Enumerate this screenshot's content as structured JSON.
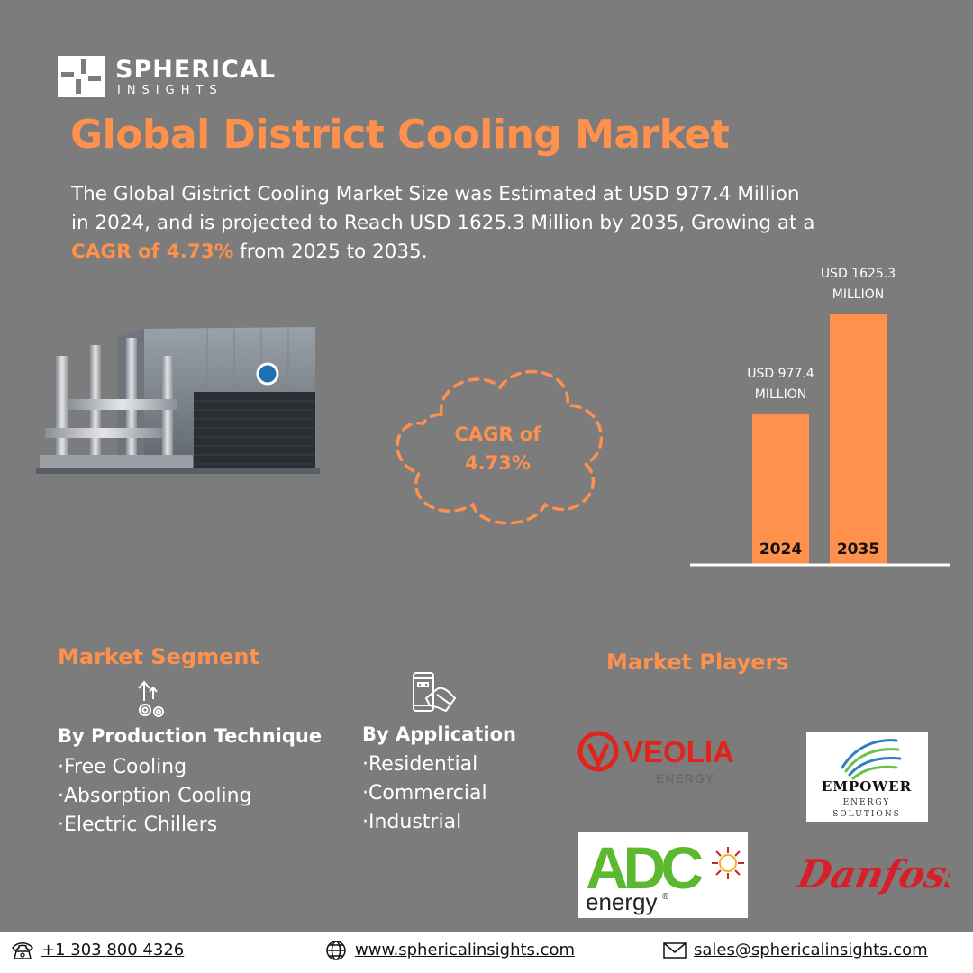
{
  "brand": {
    "name": "SPHERICAL",
    "tagline": "INSIGHTS"
  },
  "title": "Global District Cooling Market",
  "description": {
    "part1": "The Global Gistrict Cooling Market Size was Estimated at USD 977.4 Million in 2024, and is projected to Reach USD 1625.3 Million by 2035, Growing at a ",
    "highlight": "CAGR of 4.73%",
    "part2": " from 2025 to 2035."
  },
  "cagr_badge": {
    "line1": "CAGR of",
    "line2": "4.73%"
  },
  "chart_data": {
    "type": "bar",
    "categories": [
      "2024",
      "2035"
    ],
    "values": [
      977.4,
      1625.3
    ],
    "data_labels": [
      [
        "USD 977.4",
        "MILLION"
      ],
      [
        "USD 1625.3",
        "MILLION"
      ]
    ],
    "units": "USD Million",
    "ylim": [
      0,
      1625.3
    ],
    "grid": false,
    "bar_color": "#ff914d"
  },
  "segments": {
    "heading": "Market Segment",
    "production": {
      "title": "By Production Technique",
      "icon": "gear-arrow-icon",
      "items": [
        "Free Cooling",
        "Absorption Cooling",
        "Electric Chillers"
      ]
    },
    "application": {
      "title": "By Application",
      "icon": "phone-hand-icon",
      "items": [
        "Residential",
        "Commercial",
        "Industrial"
      ]
    }
  },
  "players": {
    "heading": "Market Players",
    "veolia": {
      "name": "VEOLIA",
      "sub": "ENERGY"
    },
    "empower": {
      "name": "EMPOWER",
      "sub1": "ENERGY",
      "sub2": "SOLUTIONS"
    },
    "adc": {
      "name": "ADC",
      "sub": "energy",
      "reg": "®"
    },
    "danfoss": {
      "name": "Danfoss"
    }
  },
  "footer": {
    "phone": "+1 303 800 4326",
    "website": "www.sphericalinsights.com",
    "email": "sales@sphericalinsights.com"
  },
  "colors": {
    "background": "#7c7c7c",
    "accent": "#ff914d",
    "veolia_red": "#e2231a",
    "adc_green": "#5cb82e",
    "danfoss_red": "#d5202a"
  }
}
